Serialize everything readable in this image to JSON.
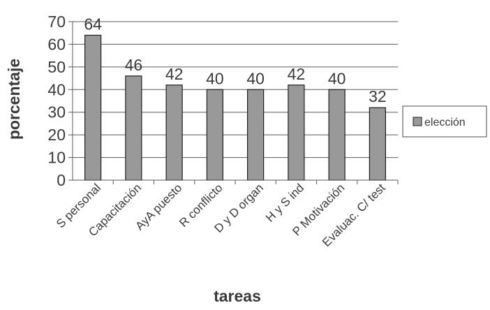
{
  "chart_data": {
    "type": "bar",
    "categories": [
      "S personal",
      "Capacitación",
      "AyA puesto",
      "R conflicto",
      "D y D organ",
      "H y S ind",
      "P Motivación",
      "Evaluac. C/ test"
    ],
    "series": [
      {
        "name": "elección",
        "values": [
          64,
          46,
          42,
          40,
          40,
          42,
          40,
          32
        ]
      }
    ],
    "data_labels": [
      "64",
      "46",
      "42",
      "40",
      "40",
      "42",
      "40",
      "32"
    ],
    "yticks": [
      0,
      10,
      20,
      30,
      40,
      50,
      60,
      70
    ],
    "ylim": [
      0,
      70
    ],
    "xlabel": "tareas",
    "ylabel": "porcentaje",
    "grid": true,
    "legend_position": "right",
    "colors": {
      "bar": "#999999",
      "bar_stroke": "#1e1e1e",
      "grid": "#5a5a5a",
      "text": "#3a3a3a"
    }
  }
}
